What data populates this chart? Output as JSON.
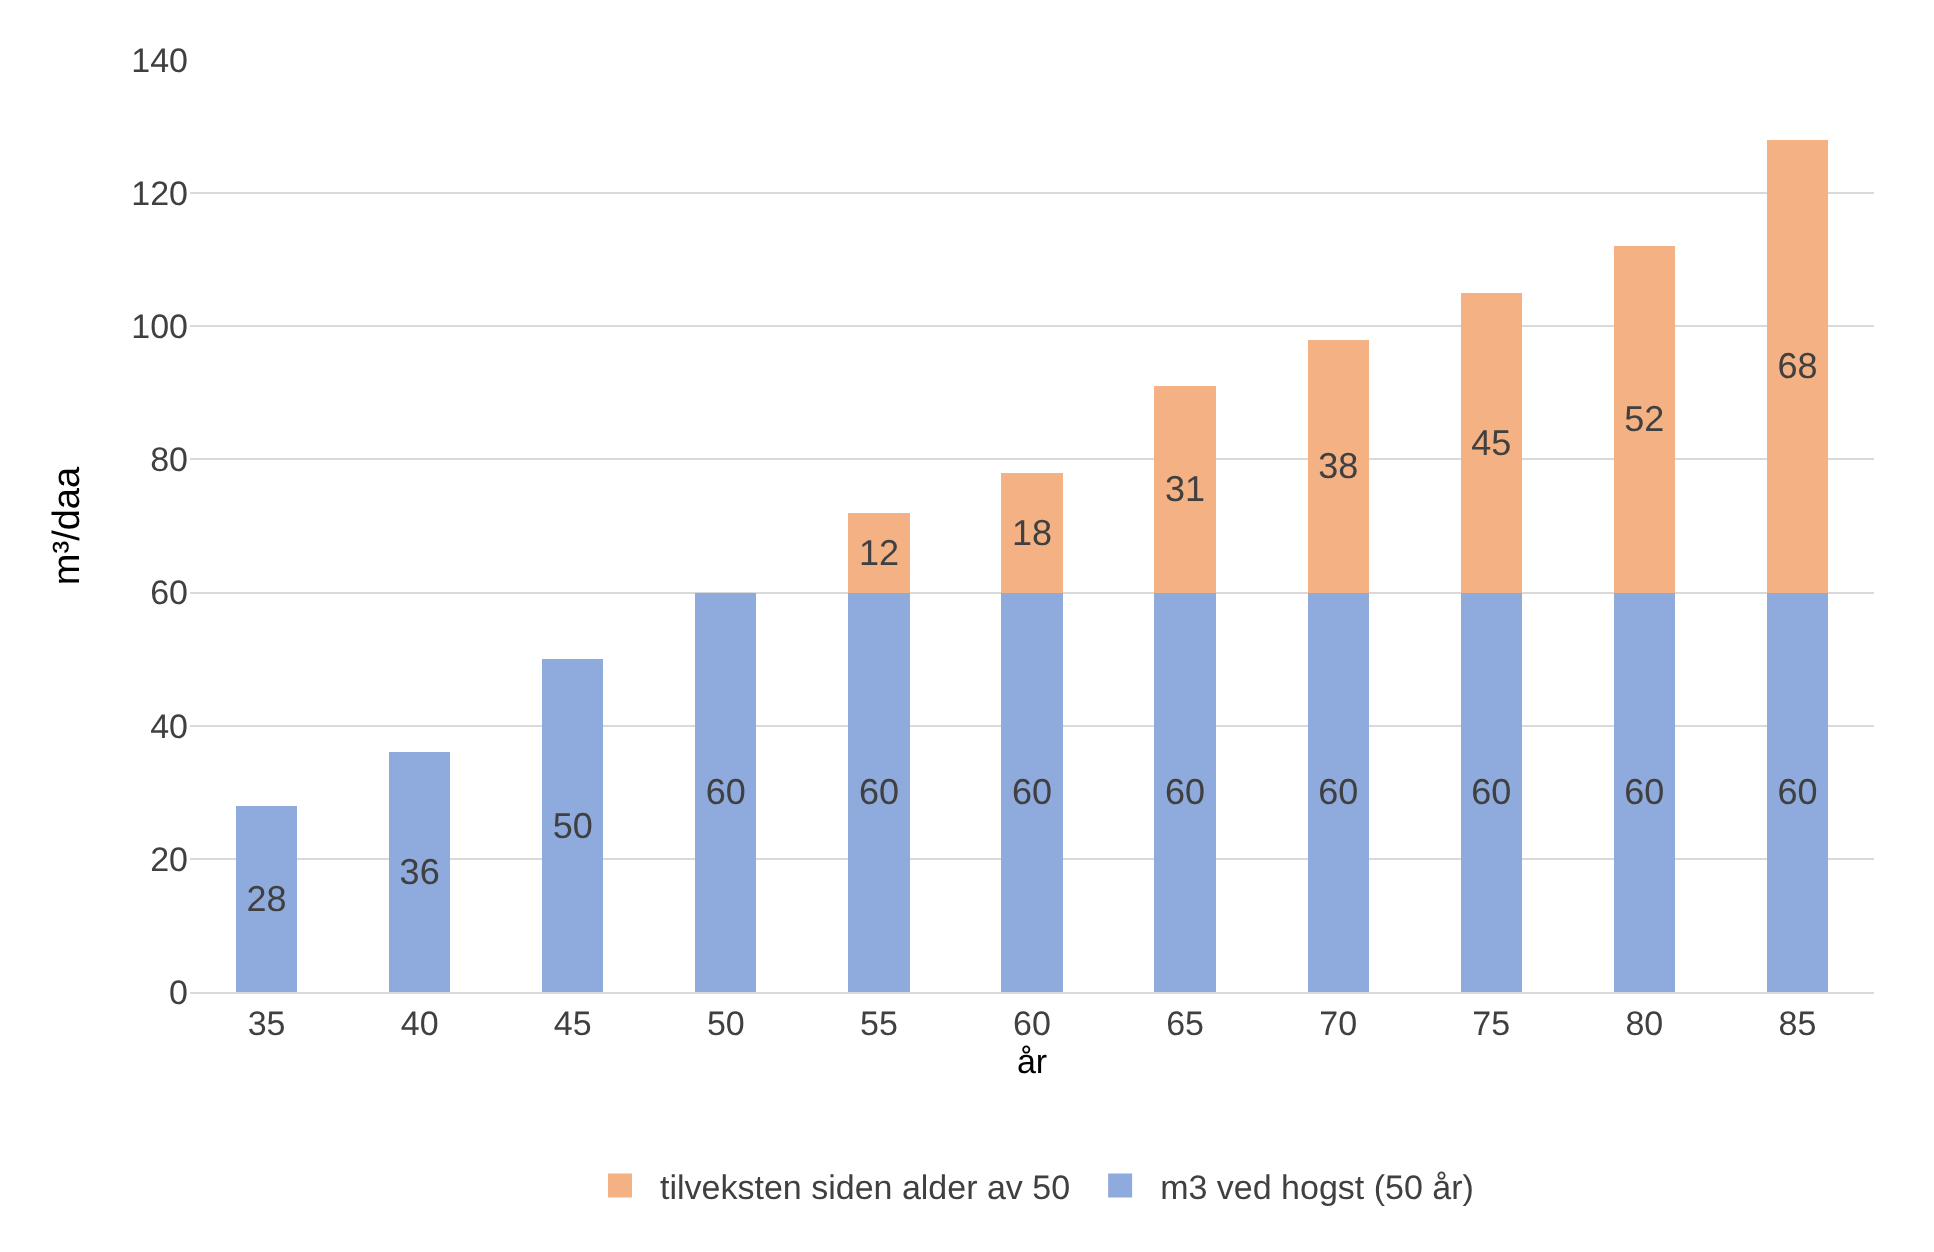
{
  "chart_data": {
    "type": "bar",
    "stacked": true,
    "xlabel": "år",
    "ylabel": "m³/daa",
    "categories": [
      "35",
      "40",
      "45",
      "50",
      "55",
      "60",
      "65",
      "70",
      "75",
      "80",
      "85"
    ],
    "series": [
      {
        "name": "m3 ved hogst (50 år)",
        "color": "#8faadc",
        "values": [
          28,
          36,
          50,
          60,
          60,
          60,
          60,
          60,
          60,
          60,
          60
        ]
      },
      {
        "name": "tilveksten siden alder av 50",
        "color": "#f4b183",
        "values": [
          null,
          null,
          null,
          null,
          12,
          18,
          31,
          38,
          45,
          52,
          68
        ]
      }
    ],
    "ylim": [
      0,
      140
    ],
    "yticks": [
      0,
      20,
      40,
      60,
      80,
      100,
      120,
      140
    ],
    "grid": "y",
    "legend": "bottom",
    "data_labels": true
  }
}
